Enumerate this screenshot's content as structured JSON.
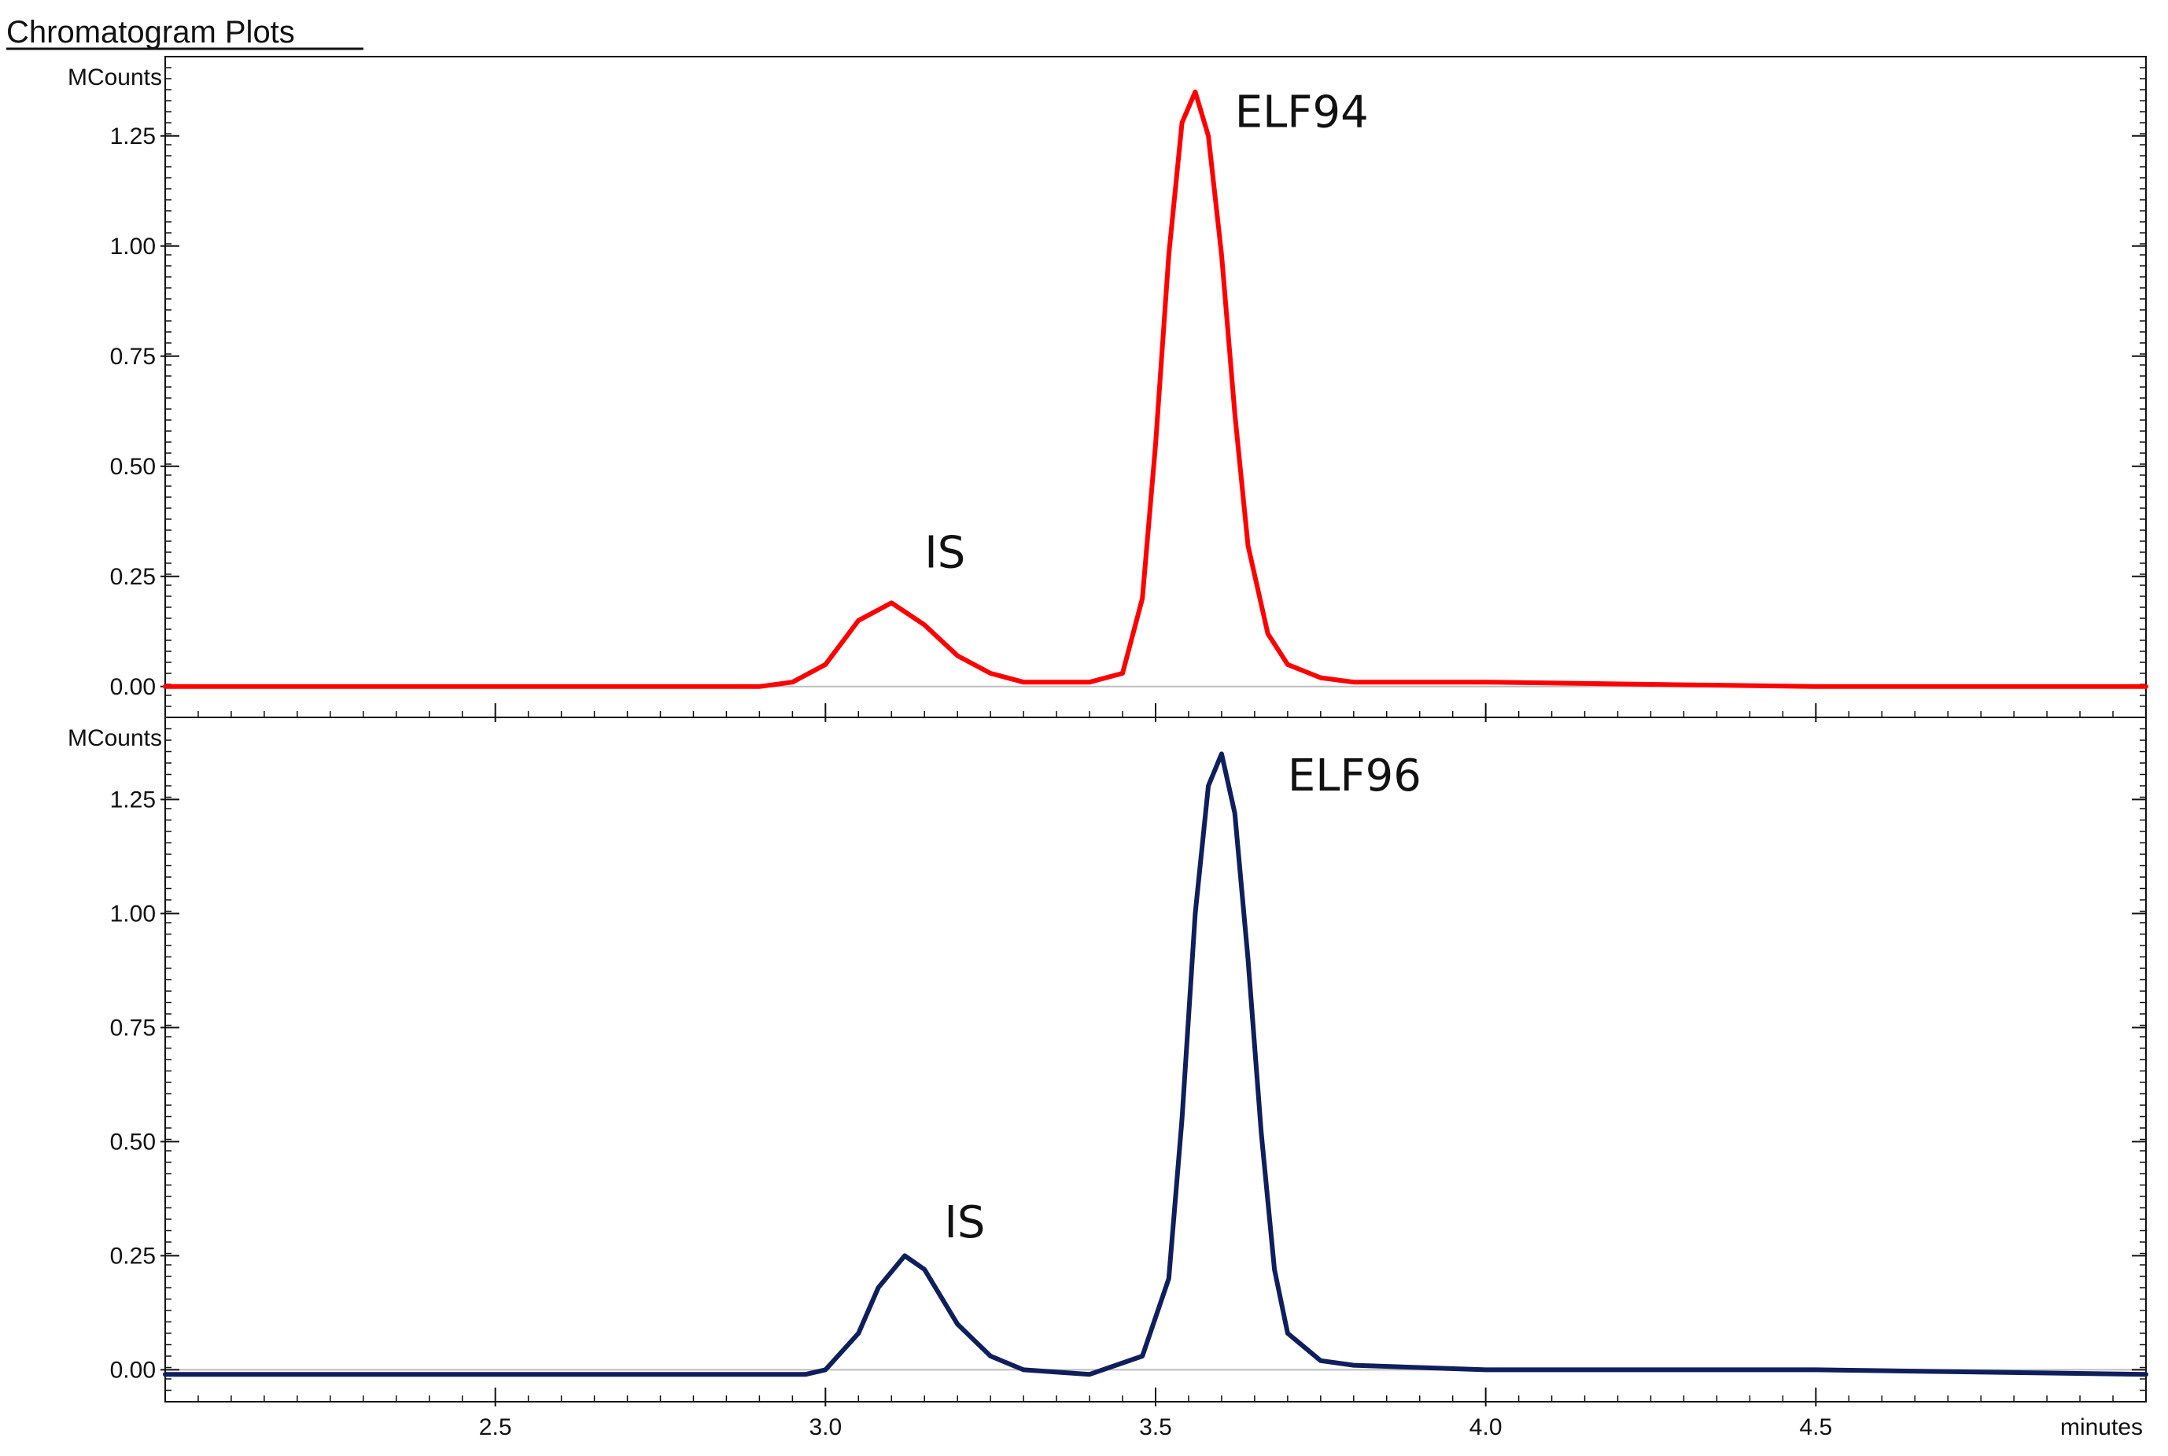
{
  "window": {
    "title": "Chromatogram Plots"
  },
  "chart_data": [
    {
      "type": "line",
      "xlabel": "",
      "ylabel": "MCounts",
      "xlim": [
        2.0,
        5.0
      ],
      "ylim": [
        -0.07,
        1.43
      ],
      "yticks": [
        0.0,
        0.25,
        0.5,
        0.75,
        1.0,
        1.25
      ],
      "ytick_labels": [
        "0.00",
        "0.25",
        "0.50",
        "0.75",
        "1.00",
        "1.25"
      ],
      "xticks": [
        2.5,
        3.0,
        3.5,
        4.0,
        4.5
      ],
      "grid": false,
      "annotations": [
        {
          "text": "IS",
          "x": 3.15,
          "y": 0.27
        },
        {
          "text": "ELF94",
          "x": 3.62,
          "y": 1.27
        }
      ],
      "series": [
        {
          "color": "#ff0000",
          "x": [
            2.0,
            2.4,
            2.9,
            2.95,
            3.0,
            3.05,
            3.1,
            3.15,
            3.2,
            3.25,
            3.3,
            3.4,
            3.45,
            3.48,
            3.5,
            3.52,
            3.54,
            3.56,
            3.58,
            3.6,
            3.62,
            3.64,
            3.67,
            3.7,
            3.75,
            3.8,
            4.0,
            4.5,
            5.0
          ],
          "y": [
            0.0,
            0.0,
            0.0,
            0.01,
            0.05,
            0.15,
            0.19,
            0.14,
            0.07,
            0.03,
            0.01,
            0.01,
            0.03,
            0.2,
            0.55,
            0.98,
            1.28,
            1.35,
            1.25,
            0.98,
            0.62,
            0.32,
            0.12,
            0.05,
            0.02,
            0.01,
            0.01,
            0.0,
            0.0
          ]
        }
      ]
    },
    {
      "type": "line",
      "xlabel": "minutes",
      "ylabel": "MCounts",
      "xlim": [
        2.0,
        5.0
      ],
      "ylim": [
        -0.07,
        1.43
      ],
      "yticks": [
        0.0,
        0.25,
        0.5,
        0.75,
        1.0,
        1.25
      ],
      "ytick_labels": [
        "0.00",
        "0.25",
        "0.50",
        "0.75",
        "1.00",
        "1.25"
      ],
      "xticks": [
        2.5,
        3.0,
        3.5,
        4.0,
        4.5
      ],
      "xtick_labels": [
        "2.5",
        "3.0",
        "3.5",
        "4.0",
        "4.5"
      ],
      "grid": false,
      "annotations": [
        {
          "text": "IS",
          "x": 3.18,
          "y": 0.29
        },
        {
          "text": "ELF96",
          "x": 3.7,
          "y": 1.27
        }
      ],
      "series": [
        {
          "color": "#0f1f5c",
          "x": [
            2.0,
            2.5,
            2.9,
            2.97,
            3.0,
            3.05,
            3.08,
            3.12,
            3.15,
            3.2,
            3.25,
            3.3,
            3.4,
            3.48,
            3.52,
            3.54,
            3.56,
            3.58,
            3.6,
            3.62,
            3.64,
            3.66,
            3.68,
            3.7,
            3.75,
            3.8,
            4.0,
            4.5,
            5.0
          ],
          "y": [
            -0.01,
            -0.01,
            -0.01,
            -0.01,
            0.0,
            0.08,
            0.18,
            0.25,
            0.22,
            0.1,
            0.03,
            0.0,
            -0.01,
            0.03,
            0.2,
            0.55,
            1.0,
            1.28,
            1.35,
            1.22,
            0.9,
            0.52,
            0.22,
            0.08,
            0.02,
            0.01,
            0.0,
            0.0,
            -0.01
          ]
        }
      ]
    }
  ]
}
